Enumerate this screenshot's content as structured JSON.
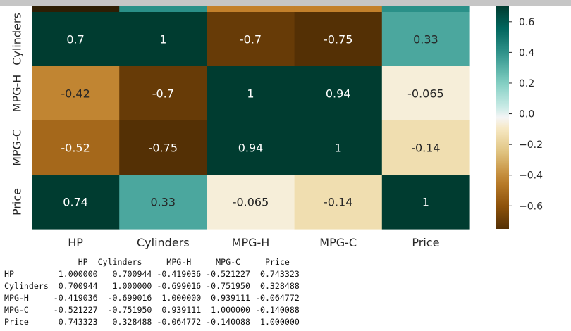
{
  "chart_data": {
    "type": "heatmap",
    "title": "",
    "xlabel": "",
    "ylabel": "",
    "row_labels": [
      "Cylinders",
      "MPG-H",
      "MPG-C",
      "Price"
    ],
    "column_labels": [
      "HP",
      "Cylinders",
      "MPG-H",
      "MPG-C",
      "Price"
    ],
    "values": [
      [
        0.7,
        1,
        -0.7,
        -0.75,
        0.33
      ],
      [
        -0.42,
        -0.7,
        1,
        0.94,
        -0.065
      ],
      [
        -0.52,
        -0.75,
        0.94,
        1,
        -0.14
      ],
      [
        0.74,
        0.33,
        -0.065,
        -0.14,
        1
      ]
    ],
    "value_labels": [
      [
        "0.7",
        "1",
        "-0.7",
        "-0.75",
        "0.33"
      ],
      [
        "-0.42",
        "-0.7",
        "1",
        "0.94",
        "-0.065"
      ],
      [
        "-0.52",
        "-0.75",
        "0.94",
        "1",
        "-0.14"
      ],
      [
        "0.74",
        "0.33",
        "-0.065",
        "-0.14",
        "1"
      ]
    ],
    "partially_visible_top_row_colors": [
      "#2e1e04",
      "#2a9088",
      "#c3802b",
      "#c3802b",
      "#2a9088"
    ],
    "colormap": "BrBG",
    "vmin": -0.75,
    "vmax": 0.7,
    "colorbar": {
      "ticks": [
        0.6,
        0.4,
        0.2,
        0.0,
        -0.2,
        -0.4,
        -0.6
      ],
      "tick_labels": [
        "0.6",
        "0.4",
        "0.2",
        "0.0",
        "−0.2",
        "−0.4",
        "−0.6"
      ]
    },
    "grid": false,
    "legend": "colorbar at right"
  },
  "printed_table": {
    "header": "               HP  Cylinders     MPG-H     MPG-C     Price",
    "rows": [
      "HP         1.000000   0.700944 -0.419036 -0.521227  0.743323",
      "Cylinders  0.700944   1.000000 -0.699016 -0.751950  0.328488",
      "MPG-H     -0.419036  -0.699016  1.000000  0.939111 -0.064772",
      "MPG-C     -0.521227  -0.751950  0.939111  1.000000 -0.140088",
      "Price      0.743323   0.328488 -0.064772 -0.140088  1.000000"
    ]
  }
}
